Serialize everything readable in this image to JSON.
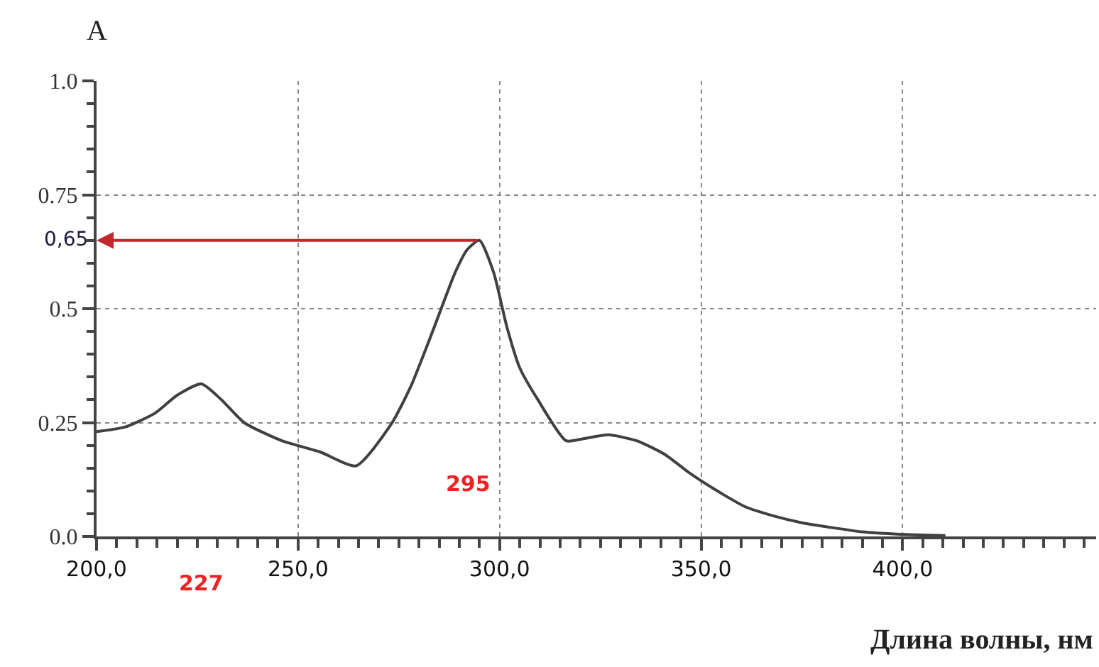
{
  "chart_data": {
    "type": "line",
    "ylabel": "A",
    "xlabel": "Длина волны, нм",
    "x": [
      200,
      207,
      214.4,
      220,
      226,
      231,
      236.6,
      246,
      255.6,
      264.4,
      273,
      278,
      283.8,
      289,
      292,
      295,
      298.5,
      301.8,
      305,
      309.5,
      316.5,
      321,
      327,
      334,
      341,
      347,
      354,
      361,
      368,
      375,
      382,
      390,
      398.6,
      405,
      410.6
    ],
    "series": [
      {
        "color": "#404040",
        "values": [
          0.23,
          0.24,
          0.27,
          0.31,
          0.335,
          0.3,
          0.25,
          0.21,
          0.185,
          0.155,
          0.245,
          0.33,
          0.46,
          0.58,
          0.63,
          0.65,
          0.58,
          0.46,
          0.37,
          0.3,
          0.21,
          0.215,
          0.223,
          0.21,
          0.18,
          0.14,
          0.1,
          0.065,
          0.045,
          0.03,
          0.02,
          0.01,
          0.005,
          0.003,
          0.002
        ]
      }
    ],
    "xlim": [
      200,
      448
    ],
    "ylim": [
      0,
      1
    ],
    "xticks": [
      {
        "value": 200,
        "label": "200,0"
      },
      {
        "value": 205,
        "label": null
      },
      {
        "value": 210,
        "label": null
      },
      {
        "value": 215,
        "label": null
      },
      {
        "value": 220,
        "label": null
      },
      {
        "value": 225,
        "label": null
      },
      {
        "value": 230,
        "label": null
      },
      {
        "value": 235,
        "label": null
      },
      {
        "value": 240,
        "label": null
      },
      {
        "value": 245,
        "label": null
      },
      {
        "value": 250,
        "label": "250,0"
      },
      {
        "value": 255,
        "label": null
      },
      {
        "value": 260,
        "label": null
      },
      {
        "value": 265,
        "label": null
      },
      {
        "value": 270,
        "label": null
      },
      {
        "value": 275,
        "label": null
      },
      {
        "value": 280,
        "label": null
      },
      {
        "value": 285,
        "label": null
      },
      {
        "value": 290,
        "label": null
      },
      {
        "value": 295,
        "label": null
      },
      {
        "value": 300,
        "label": "300,0"
      },
      {
        "value": 305,
        "label": null
      },
      {
        "value": 310,
        "label": null
      },
      {
        "value": 315,
        "label": null
      },
      {
        "value": 320,
        "label": null
      },
      {
        "value": 325,
        "label": null
      },
      {
        "value": 330,
        "label": null
      },
      {
        "value": 335,
        "label": null
      },
      {
        "value": 340,
        "label": null
      },
      {
        "value": 345,
        "label": null
      },
      {
        "value": 350,
        "label": "350,0"
      },
      {
        "value": 355,
        "label": null
      },
      {
        "value": 360,
        "label": null
      },
      {
        "value": 365,
        "label": null
      },
      {
        "value": 370,
        "label": null
      },
      {
        "value": 375,
        "label": null
      },
      {
        "value": 380,
        "label": null
      },
      {
        "value": 385,
        "label": null
      },
      {
        "value": 390,
        "label": null
      },
      {
        "value": 395,
        "label": null
      },
      {
        "value": 400,
        "label": "400,0"
      },
      {
        "value": 405,
        "label": null
      },
      {
        "value": 410,
        "label": null
      },
      {
        "value": 415,
        "label": null
      },
      {
        "value": 420,
        "label": null
      },
      {
        "value": 425,
        "label": null
      },
      {
        "value": 430,
        "label": null
      },
      {
        "value": 435,
        "label": null
      },
      {
        "value": 440,
        "label": null
      },
      {
        "value": 445,
        "label": null
      }
    ],
    "yticks": [
      {
        "value": 0,
        "label": "0.0"
      },
      {
        "value": 0.05,
        "label": null
      },
      {
        "value": 0.1,
        "label": null
      },
      {
        "value": 0.15,
        "label": null
      },
      {
        "value": 0.2,
        "label": null
      },
      {
        "value": 0.25,
        "label": "0.25"
      },
      {
        "value": 0.3,
        "label": null
      },
      {
        "value": 0.35,
        "label": null
      },
      {
        "value": 0.4,
        "label": null
      },
      {
        "value": 0.45,
        "label": null
      },
      {
        "value": 0.5,
        "label": "0.5"
      },
      {
        "value": 0.55,
        "label": null
      },
      {
        "value": 0.6,
        "label": null
      },
      {
        "value": 0.65,
        "label": null
      },
      {
        "value": 0.7,
        "label": null
      },
      {
        "value": 0.75,
        "label": "0.75"
      },
      {
        "value": 0.8,
        "label": null
      },
      {
        "value": 0.85,
        "label": null
      },
      {
        "value": 0.9,
        "label": null
      },
      {
        "value": 0.95,
        "label": null
      },
      {
        "value": 1.0,
        "label": "1.0"
      }
    ],
    "grid": true,
    "marker": "none",
    "line_style": "solid",
    "annotations": [
      "0,65",
      "295",
      "227"
    ]
  }
}
